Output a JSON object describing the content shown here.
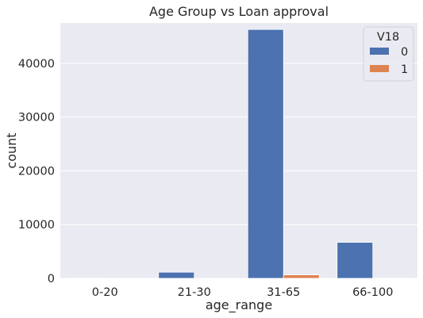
{
  "chart_data": {
    "type": "bar",
    "title": "Age Group vs Loan approval",
    "xlabel": "age_range",
    "ylabel": "count",
    "categories": [
      "0-20",
      "21-30",
      "31-65",
      "66-100"
    ],
    "series": [
      {
        "name": "0",
        "values": [
          30,
          1150,
          46300,
          6700
        ],
        "color": "#4c72b0"
      },
      {
        "name": "1",
        "values": [
          0,
          10,
          650,
          30
        ],
        "color": "#dd8452"
      }
    ],
    "ylim": [
      0,
      47500
    ],
    "yticks": [
      0,
      10000,
      20000,
      30000,
      40000
    ],
    "ytick_labels": [
      "0",
      "10000",
      "20000",
      "30000",
      "40000"
    ],
    "grid": true,
    "background": "#eaeaf2",
    "legend": {
      "title": "V18",
      "placement": "top-right"
    }
  }
}
